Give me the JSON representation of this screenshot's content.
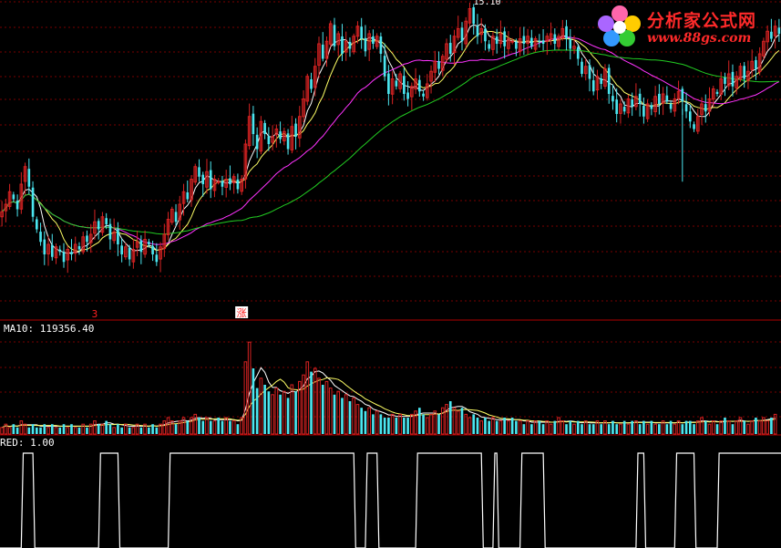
{
  "logo": {
    "title": "分析家公式网",
    "url": "www.88gs.com",
    "icon": "flower-logo-icon"
  },
  "colors": {
    "background": "#000000",
    "grid": "#7a0000",
    "up": "#d92323",
    "down": "#4be6f0",
    "ma_short": "#ffffff",
    "ma_mid": "#ffff66",
    "ma_long1": "#ff33ff",
    "ma_long2": "#22cc22",
    "label": "#ffffff",
    "marker": "#ff2020"
  },
  "chart_data": [
    {
      "type": "candlestick",
      "panel": "price",
      "peak_label": "15.10",
      "markers": [
        {
          "index": 24,
          "text": "3"
        },
        {
          "index": 62,
          "text": "涨"
        }
      ],
      "close": [
        11.05,
        11.2,
        11.45,
        11.3,
        11.1,
        11.6,
        11.95,
        11.55,
        10.95,
        10.7,
        10.45,
        10.2,
        10.4,
        10.15,
        10.35,
        10.25,
        10.05,
        10.3,
        10.2,
        10.4,
        10.3,
        10.55,
        10.45,
        10.6,
        10.85,
        10.7,
        10.95,
        10.8,
        10.5,
        10.65,
        10.4,
        10.2,
        10.35,
        10.1,
        10.3,
        10.45,
        10.25,
        10.5,
        10.4,
        10.2,
        10.05,
        10.35,
        10.6,
        10.9,
        11.1,
        10.85,
        11.2,
        11.45,
        11.3,
        11.7,
        11.95,
        11.75,
        11.6,
        11.85,
        11.5,
        11.7,
        11.65,
        11.55,
        11.7,
        11.6,
        11.75,
        11.5,
        11.7,
        12.4,
        12.95,
        12.6,
        12.3,
        12.85,
        12.6,
        12.4,
        12.55,
        12.7,
        12.5,
        12.65,
        12.3,
        12.75,
        12.55,
        12.95,
        13.3,
        13.75,
        13.5,
        13.95,
        14.4,
        14.1,
        14.45,
        14.8,
        14.35,
        14.6,
        14.2,
        14.45,
        14.3,
        14.55,
        14.75,
        14.5,
        14.25,
        14.6,
        14.4,
        14.55,
        14.2,
        13.75,
        13.4,
        13.7,
        13.55,
        13.8,
        13.4,
        13.3,
        13.55,
        13.7,
        13.45,
        13.35,
        13.6,
        13.85,
        14.05,
        13.9,
        14.15,
        14.4,
        14.2,
        14.55,
        14.7,
        14.45,
        14.85,
        15.1,
        14.8,
        14.55,
        14.7,
        14.45,
        14.3,
        14.55,
        14.4,
        14.6,
        14.35,
        14.5,
        14.45,
        14.3,
        14.5,
        14.4,
        14.55,
        14.35,
        14.5,
        14.45,
        14.4,
        14.55,
        14.6,
        14.4,
        14.55,
        14.7,
        14.5,
        14.3,
        14.35,
        14.1,
        13.8,
        13.95,
        13.7,
        13.45,
        13.75,
        13.6,
        13.9,
        13.4,
        13.25,
        13.0,
        13.2,
        13.05,
        13.3,
        13.15,
        13.35,
        13.2,
        12.95,
        13.2,
        13.1,
        13.35,
        13.2,
        13.4,
        13.25,
        13.1,
        13.3,
        13.45,
        13.25,
        13.05,
        12.85,
        12.7,
        12.95,
        13.2,
        13.05,
        13.3,
        13.5,
        13.4,
        13.7,
        13.6,
        13.8,
        13.55,
        13.75,
        13.95,
        13.7,
        13.85,
        14.05,
        13.9,
        14.2,
        14.45,
        14.65,
        14.5,
        14.75,
        14.6
      ],
      "moving_averages": [
        "MA5",
        "MA10",
        "MA30",
        "MA60"
      ]
    },
    {
      "type": "bar",
      "panel": "volume",
      "label": "MA10: 119356.40",
      "volume": [
        2,
        3,
        2,
        3,
        2,
        4,
        3,
        2,
        3,
        2,
        2,
        3,
        2,
        3,
        2,
        2,
        3,
        2,
        3,
        2,
        2,
        3,
        2,
        3,
        4,
        3,
        3,
        4,
        3,
        2,
        3,
        2,
        3,
        2,
        2,
        3,
        2,
        3,
        2,
        3,
        2,
        3,
        4,
        5,
        4,
        3,
        4,
        5,
        4,
        5,
        6,
        5,
        4,
        5,
        4,
        4,
        5,
        4,
        5,
        4,
        4,
        3,
        5,
        22,
        28,
        20,
        14,
        17,
        15,
        13,
        12,
        14,
        12,
        13,
        11,
        15,
        13,
        16,
        18,
        22,
        19,
        20,
        17,
        15,
        16,
        14,
        12,
        13,
        11,
        12,
        10,
        11,
        9,
        8,
        7,
        8,
        6,
        7,
        6,
        5,
        5,
        6,
        5,
        6,
        5,
        5,
        6,
        7,
        8,
        6,
        5,
        6,
        7,
        6,
        8,
        9,
        10,
        8,
        7,
        8,
        6,
        5,
        6,
        5,
        4,
        5,
        4,
        5,
        4,
        4,
        5,
        4,
        5,
        4,
        4,
        3,
        4,
        3,
        4,
        4,
        3,
        4,
        3,
        4,
        5,
        4,
        3,
        4,
        3,
        4,
        3,
        4,
        3,
        3,
        4,
        3,
        4,
        3,
        4,
        3,
        3,
        4,
        3,
        4,
        4,
        3,
        4,
        3,
        4,
        3,
        3,
        4,
        3,
        4,
        3,
        4,
        3,
        4,
        4,
        3,
        4,
        5,
        4,
        3,
        4,
        3,
        4,
        5,
        4,
        3,
        4,
        5,
        4,
        3,
        4,
        5,
        4,
        5,
        4,
        5,
        6
      ]
    },
    {
      "type": "line",
      "panel": "indicator",
      "label": "RED: 1.00",
      "signal": [
        0,
        0,
        0,
        0,
        0,
        0,
        1,
        1,
        1,
        0,
        0,
        0,
        0,
        0,
        0,
        0,
        0,
        0,
        0,
        0,
        0,
        0,
        0,
        0,
        0,
        0,
        1,
        1,
        1,
        1,
        1,
        0,
        0,
        0,
        0,
        0,
        0,
        0,
        0,
        0,
        0,
        0,
        0,
        0,
        1,
        1,
        1,
        1,
        1,
        1,
        1,
        1,
        1,
        1,
        1,
        1,
        1,
        1,
        1,
        1,
        1,
        1,
        1,
        1,
        1,
        1,
        1,
        1,
        1,
        1,
        1,
        1,
        1,
        1,
        1,
        1,
        1,
        1,
        1,
        1,
        1,
        1,
        1,
        1,
        1,
        1,
        1,
        1,
        1,
        1,
        1,
        1,
        0,
        0,
        0,
        1,
        1,
        1,
        0,
        0,
        0,
        0,
        0,
        0,
        0,
        0,
        0,
        0,
        1,
        1,
        1,
        1,
        1,
        1,
        1,
        1,
        1,
        1,
        1,
        1,
        1,
        1,
        1,
        1,
        1,
        0,
        0,
        0,
        1,
        0,
        0,
        0,
        0,
        0,
        0,
        1,
        1,
        1,
        1,
        1,
        1,
        0,
        0,
        0,
        0,
        0,
        0,
        0,
        0,
        0,
        0,
        0,
        0,
        0,
        0,
        0,
        0,
        0,
        0,
        0,
        0,
        0,
        0,
        0,
        0,
        1,
        1,
        0,
        0,
        0,
        0,
        0,
        0,
        0,
        0,
        1,
        1,
        1,
        1,
        1,
        0,
        0,
        0,
        0,
        0,
        0,
        1,
        1,
        1,
        1,
        1,
        1,
        1,
        1,
        1,
        1,
        1,
        1,
        1,
        1,
        1,
        1,
        1,
        1,
        1,
        1,
        1
      ]
    }
  ]
}
